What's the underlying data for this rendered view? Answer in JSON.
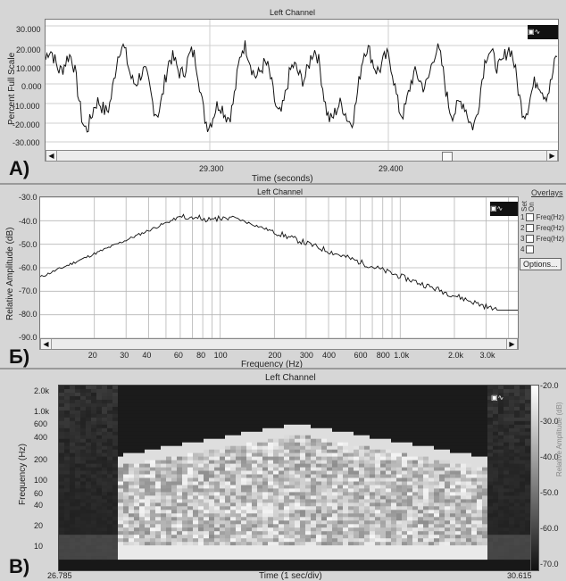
{
  "panel_a": {
    "title": "Left Channel",
    "ylabel": "Percent Full Scale",
    "yticks": [
      "30.000",
      "20.000",
      "10.000",
      "0.000",
      "-10.000",
      "-20.000",
      "-30.000"
    ],
    "xticks": [
      "29.300",
      "29.400"
    ],
    "xlabel": "Time (seconds)",
    "letter": "A)"
  },
  "panel_b": {
    "title": "Left Channel",
    "ylabel": "Relative Amplitude (dB)",
    "yticks": [
      "-30.0",
      "-40.0",
      "-50.0",
      "-60.0",
      "-70.0",
      "-80.0",
      "-90.0"
    ],
    "xticks": [
      "20",
      "30",
      "40",
      "60",
      "80",
      "100",
      "200",
      "300",
      "400",
      "600",
      "800",
      "1.0k",
      "2.0k",
      "3.0k"
    ],
    "xlabel": "Frequency (Hz)",
    "letter": "Б)",
    "overlays": {
      "title": "Overlays",
      "set_label": "Set",
      "on_label": "On",
      "rows": [
        {
          "num": "1",
          "label": "Freq(Hz)"
        },
        {
          "num": "2",
          "label": "Freq(Hz)"
        },
        {
          "num": "3",
          "label": "Freq(Hz)"
        },
        {
          "num": "4",
          "label": ""
        }
      ],
      "options_button": "Options..."
    }
  },
  "panel_c": {
    "title": "Left Channel",
    "ylabel": "Frequency (Hz)",
    "yticks": [
      "2.0k",
      "1.0k",
      "600",
      "400",
      "200",
      "100",
      "60",
      "40",
      "20",
      "10"
    ],
    "xticks": [
      "26.785",
      "30.615"
    ],
    "xlabel": "Time (1 sec/div)",
    "letter": "В)",
    "colorbar_ticks": [
      "-20.0",
      "-30.0",
      "-40.0",
      "-50.0",
      "-60.0",
      "-70.0"
    ],
    "colorbar_label": "Relative Amplitude (dB)"
  },
  "colors": {
    "background": "#d6d6d6",
    "trace": "#111111",
    "grid": "#b5b5b5"
  }
}
